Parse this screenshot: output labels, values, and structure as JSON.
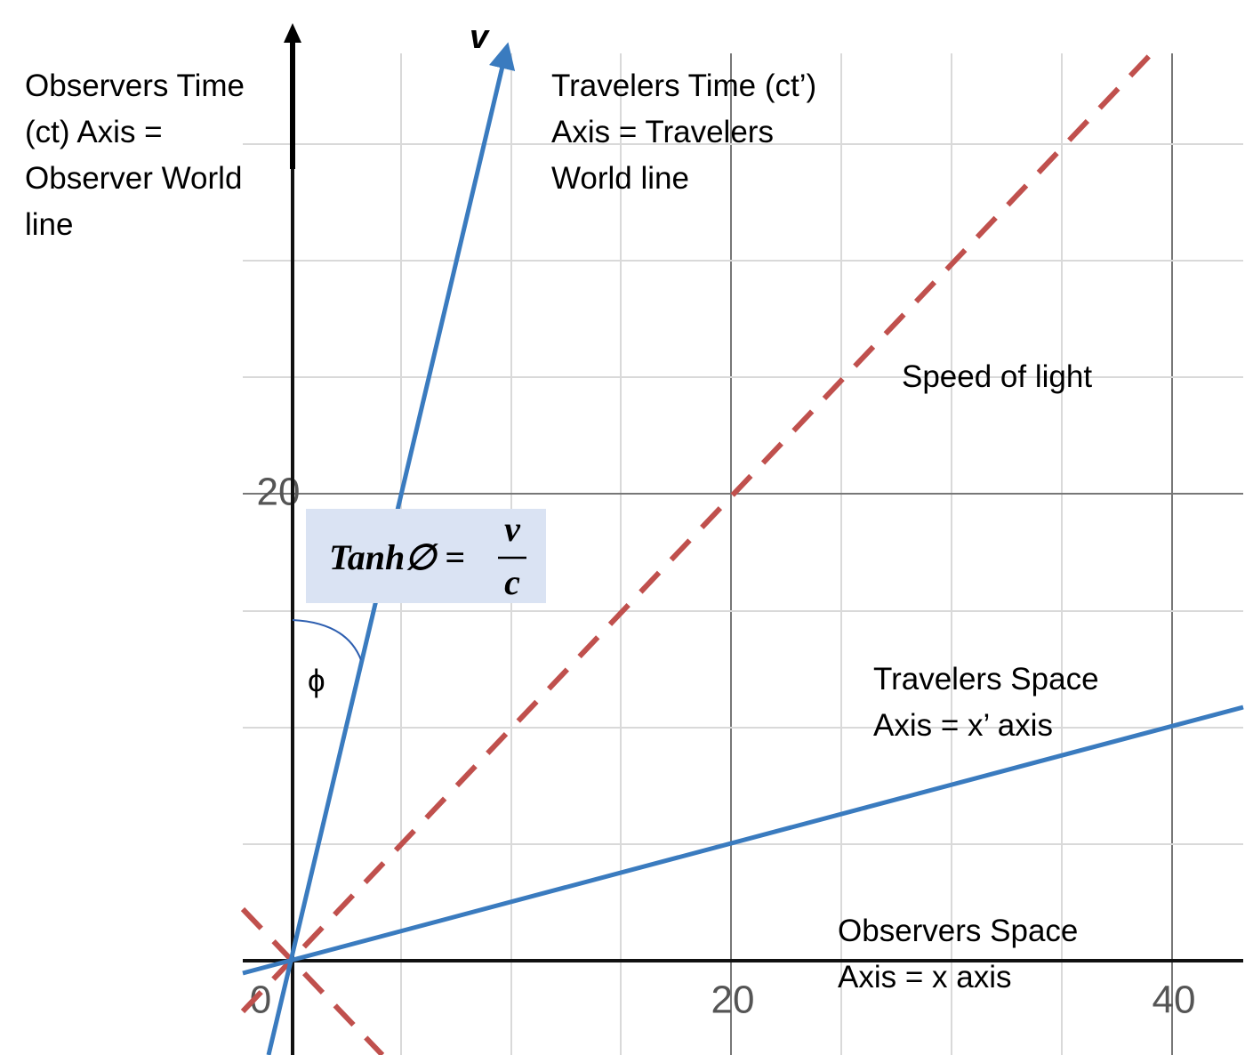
{
  "labels": {
    "observer_time": [
      "Observers Time",
      "(ct) Axis =",
      "Observer World",
      "line"
    ],
    "velocity": "v",
    "traveler_time": [
      "Travelers Time (ct’)",
      "Axis = Travelers",
      "World line"
    ],
    "speed_of_light": "Speed of light",
    "traveler_space": [
      "Travelers Space",
      "Axis = x’ axis"
    ],
    "observer_space": [
      "Observers Space",
      "Axis = x axis"
    ],
    "angle": "ϕ"
  },
  "formula": {
    "lhs": "Tanh∅ =",
    "numerator": "v",
    "denominator": "c"
  },
  "ticks": {
    "x": [
      0,
      20,
      40
    ],
    "y": [
      20
    ]
  }
}
